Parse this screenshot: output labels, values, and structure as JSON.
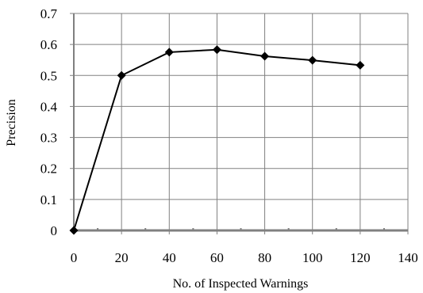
{
  "chart_data": {
    "type": "line",
    "title": "",
    "xlabel": "No. of Inspected Warnings",
    "ylabel": "Precision",
    "xlim": [
      0,
      140
    ],
    "ylim": [
      0,
      0.7
    ],
    "x_ticks": [
      0,
      20,
      40,
      60,
      80,
      100,
      120,
      140
    ],
    "y_ticks": [
      0,
      0.1,
      0.2,
      0.3,
      0.4,
      0.5,
      0.6,
      0.7
    ],
    "x_tick_labels": [
      "0",
      "20",
      "40",
      "60",
      "80",
      "100",
      "120",
      "140"
    ],
    "y_tick_labels": [
      "0",
      "0.1",
      "0.2",
      "0.3",
      "0.4",
      "0.5",
      "0.6",
      "0.7"
    ],
    "grid": true,
    "legend": "none",
    "marker": "diamond",
    "series": [
      {
        "x": [
          0,
          20,
          40,
          60,
          80,
          100,
          120
        ],
        "y": [
          0,
          0.5,
          0.575,
          0.583,
          0.562,
          0.549,
          0.533
        ],
        "color": "#000000"
      }
    ],
    "colors": {
      "grid": "#808080",
      "axis": "#808080",
      "line": "#000000"
    }
  }
}
